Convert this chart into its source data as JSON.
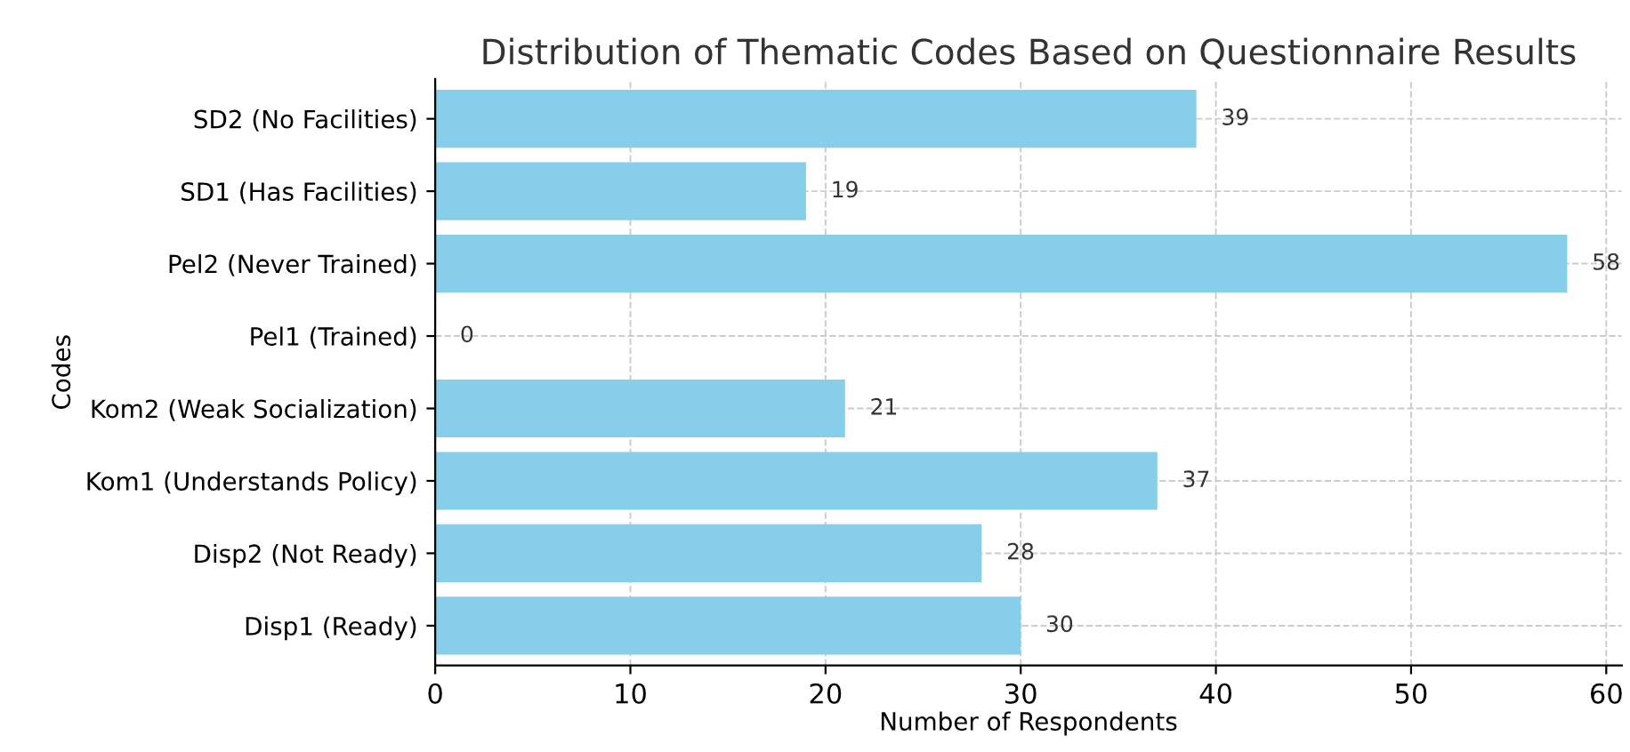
{
  "chart_data": {
    "type": "bar",
    "orientation": "horizontal",
    "title": "Distribution of Thematic Codes Based on Questionnaire Results",
    "xlabel": "Number of Respondents",
    "ylabel": "Codes",
    "categories": [
      "SD2 (No Facilities)",
      "SD1 (Has Facilities)",
      "Pel2 (Never Trained)",
      "Pel1 (Trained)",
      "Kom2 (Weak Socialization)",
      "Kom1 (Understands Policy)",
      "Disp2 (Not Ready)",
      "Disp1 (Ready)"
    ],
    "values": [
      39,
      19,
      58,
      0,
      21,
      37,
      28,
      30
    ],
    "color": "#87ceeb",
    "data_labels": true,
    "xlim": [
      0,
      60.8
    ],
    "xticks": [
      0,
      10,
      20,
      30,
      40,
      50,
      60
    ],
    "grid": true,
    "legend": false
  }
}
